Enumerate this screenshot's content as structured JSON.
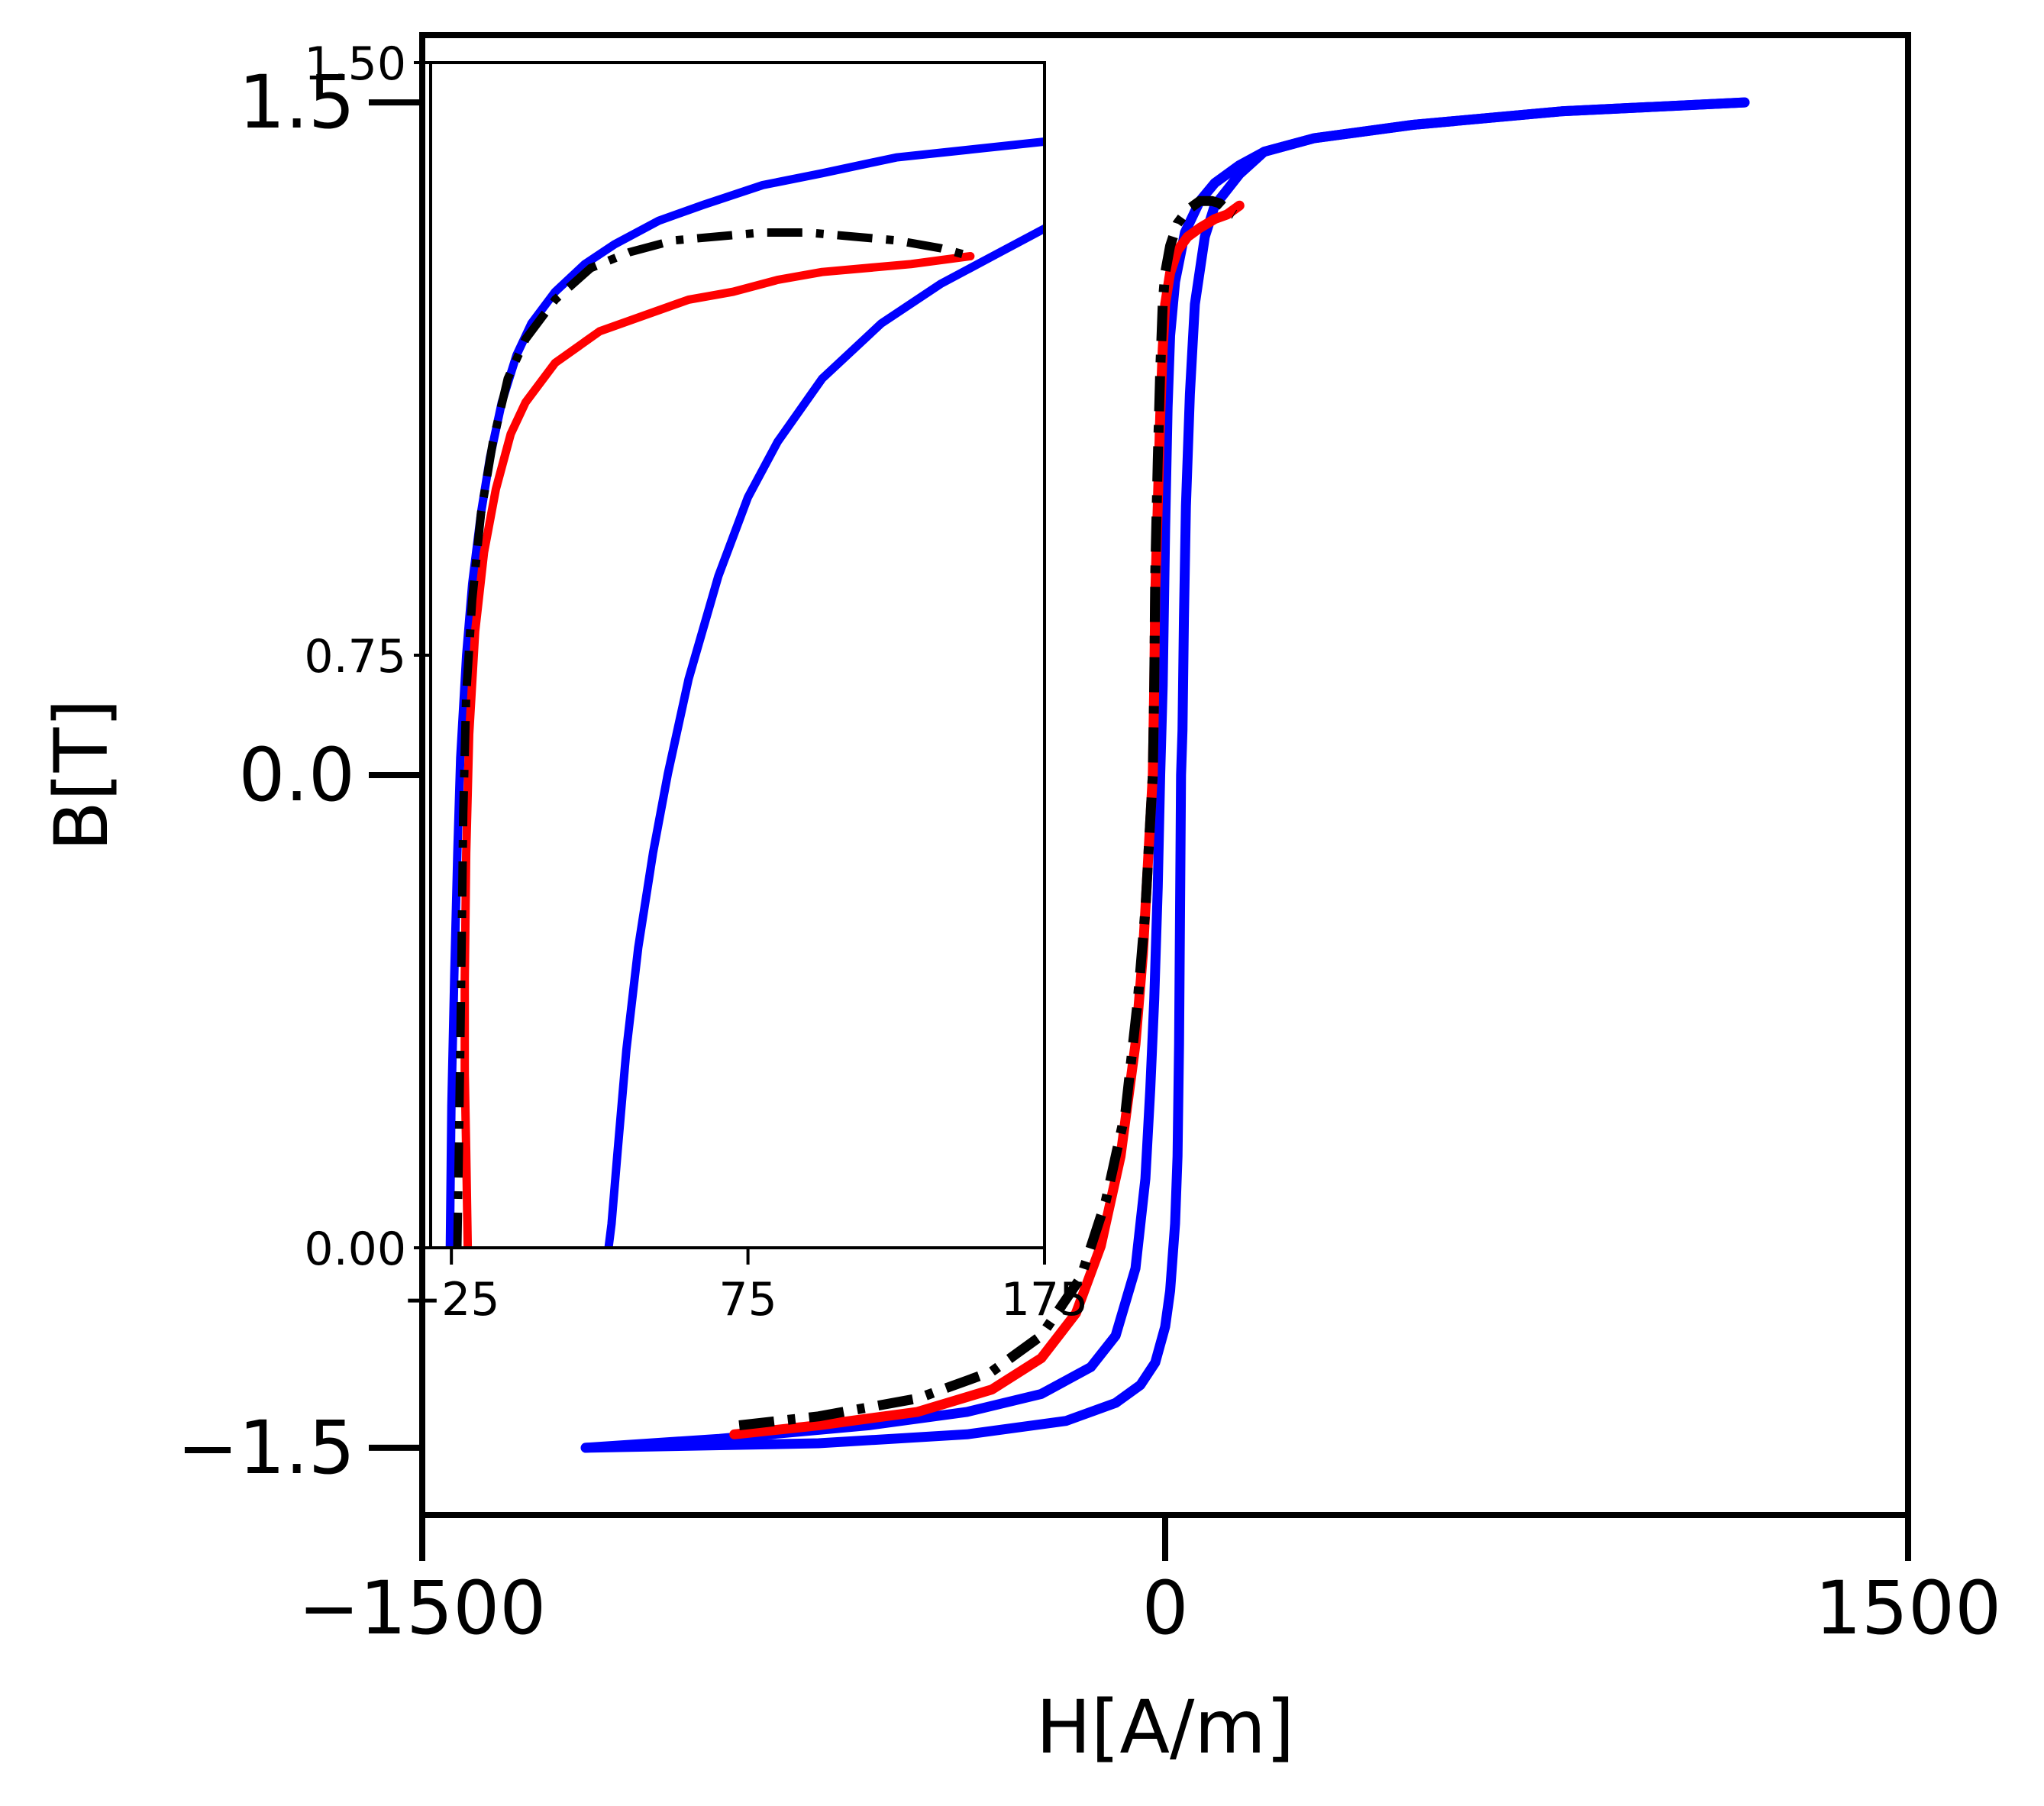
{
  "chart_data": [
    {
      "type": "line",
      "xlabel": "H[A/m]",
      "ylabel": "B[T]",
      "xlim": [
        -1500,
        1500
      ],
      "ylim": [
        -1.65,
        1.65
      ],
      "xticks": [
        -1500,
        0,
        1500
      ],
      "xtick_labels": [
        "−1500",
        "0",
        "1500"
      ],
      "yticks": [
        -1.5,
        0.0,
        1.5
      ],
      "ytick_labels": [
        "−1.5",
        "0.0",
        "1.5"
      ],
      "grid": false,
      "legend": "none",
      "series": [
        {
          "style": "solid",
          "color": "#0000ff",
          "x": [
            -1170,
            -900,
            -600,
            -400,
            -250,
            -150,
            -100,
            -60,
            -40,
            -30,
            -22,
            -15,
            -10,
            -5,
            0,
            5,
            10,
            20,
            40,
            70,
            100,
            150,
            200,
            300,
            500,
            800,
            1170
          ],
          "y": [
            -1.5,
            -1.48,
            -1.45,
            -1.42,
            -1.38,
            -1.32,
            -1.25,
            -1.1,
            -0.9,
            -0.7,
            -0.5,
            -0.25,
            0.0,
            0.2,
            0.55,
            0.82,
            0.98,
            1.1,
            1.21,
            1.28,
            1.32,
            1.36,
            1.39,
            1.42,
            1.45,
            1.48,
            1.5
          ]
        },
        {
          "style": "solid",
          "color": "#0000ff",
          "x": [
            1170,
            800,
            500,
            300,
            200,
            150,
            100,
            80,
            60,
            50,
            42,
            38,
            35,
            32,
            30,
            28,
            25,
            20,
            10,
            0,
            -20,
            -50,
            -100,
            -200,
            -400,
            -700,
            -1170
          ],
          "y": [
            1.5,
            1.48,
            1.45,
            1.42,
            1.39,
            1.34,
            1.27,
            1.2,
            1.05,
            0.85,
            0.6,
            0.35,
            0.1,
            0.0,
            -0.3,
            -0.6,
            -0.85,
            -1.0,
            -1.15,
            -1.23,
            -1.31,
            -1.36,
            -1.4,
            -1.44,
            -1.47,
            -1.49,
            -1.5
          ]
        },
        {
          "style": "solid",
          "color": "#ff0000",
          "x": [
            -870,
            -700,
            -500,
            -350,
            -250,
            -180,
            -130,
            -90,
            -60,
            -45,
            -35,
            -25,
            -22,
            -20,
            -15,
            -10,
            -5,
            0,
            10,
            25,
            45,
            70,
            100,
            125,
            150
          ],
          "y": [
            -1.47,
            -1.45,
            -1.42,
            -1.37,
            -1.3,
            -1.2,
            -1.05,
            -0.85,
            -0.6,
            -0.4,
            -0.2,
            0.0,
            0.2,
            0.4,
            0.6,
            0.8,
            0.95,
            1.05,
            1.12,
            1.17,
            1.2,
            1.22,
            1.24,
            1.25,
            1.27
          ]
        },
        {
          "style": "dashdot",
          "color": "#000000",
          "x": [
            -860,
            -700,
            -500,
            -350,
            -250,
            -170,
            -120,
            -80,
            -55,
            -40,
            -30,
            -25,
            -22,
            -20,
            -15,
            -10,
            -5,
            0,
            10,
            25,
            45,
            70,
            95,
            110,
            125,
            140
          ],
          "y": [
            -1.45,
            -1.43,
            -1.39,
            -1.33,
            -1.25,
            -1.12,
            -0.95,
            -0.75,
            -0.5,
            -0.3,
            -0.1,
            0.0,
            0.2,
            0.45,
            0.7,
            0.9,
            1.05,
            1.12,
            1.18,
            1.23,
            1.26,
            1.28,
            1.28,
            1.275,
            1.26,
            1.25
          ]
        }
      ]
    },
    {
      "type": "line",
      "inset": true,
      "xlim": [
        -32,
        175
      ],
      "ylim": [
        0.0,
        1.5
      ],
      "xticks": [
        -25,
        75,
        175
      ],
      "xtick_labels": [
        "−25",
        "75",
        "175"
      ],
      "yticks": [
        0.0,
        0.75,
        1.5
      ],
      "ytick_labels": [
        "0.00",
        "0.75",
        "1.50"
      ],
      "grid": false,
      "series": [
        {
          "style": "solid",
          "color": "#0000ff",
          "x": [
            -25.5,
            -25,
            -24,
            -23,
            -22,
            -20,
            -18,
            -15,
            -12,
            -8,
            -3,
            2,
            10,
            20,
            30,
            45,
            60,
            80,
            100,
            125,
            150,
            175
          ],
          "y": [
            0.0,
            0.18,
            0.35,
            0.5,
            0.62,
            0.75,
            0.84,
            0.93,
            1.0,
            1.07,
            1.13,
            1.17,
            1.21,
            1.245,
            1.27,
            1.3,
            1.32,
            1.345,
            1.36,
            1.38,
            1.39,
            1.4
          ]
        },
        {
          "style": "solid",
          "color": "#0000ff",
          "x": [
            175,
            160,
            140,
            120,
            100,
            85,
            75,
            65,
            55,
            48,
            43,
            38,
            34,
            31,
            29,
            28
          ],
          "y": [
            1.29,
            1.26,
            1.22,
            1.17,
            1.1,
            1.02,
            0.95,
            0.85,
            0.72,
            0.6,
            0.5,
            0.38,
            0.25,
            0.12,
            0.03,
            0.0
          ]
        },
        {
          "style": "solid",
          "color": "#ff0000",
          "x": [
            -19.5,
            -20,
            -20.5,
            -20.5,
            -20,
            -19,
            -17,
            -14,
            -10,
            -5,
            0,
            10,
            25,
            40,
            55,
            70,
            85,
            100,
            115,
            130,
            150
          ],
          "y": [
            0.0,
            0.12,
            0.22,
            0.34,
            0.5,
            0.65,
            0.78,
            0.88,
            0.96,
            1.03,
            1.07,
            1.12,
            1.16,
            1.18,
            1.2,
            1.21,
            1.225,
            1.235,
            1.24,
            1.245,
            1.255
          ]
        },
        {
          "style": "dashdot",
          "color": "#000000",
          "x": [
            -23,
            -22.5,
            -22,
            -21.5,
            -21,
            -20,
            -18,
            -15,
            -11,
            -6,
            0,
            10,
            22,
            35,
            50,
            65,
            80,
            95,
            110,
            125,
            140,
            150
          ],
          "y": [
            0.0,
            0.12,
            0.25,
            0.4,
            0.55,
            0.7,
            0.82,
            0.93,
            1.02,
            1.1,
            1.15,
            1.2,
            1.24,
            1.26,
            1.275,
            1.28,
            1.285,
            1.285,
            1.28,
            1.275,
            1.265,
            1.255
          ]
        }
      ]
    }
  ]
}
